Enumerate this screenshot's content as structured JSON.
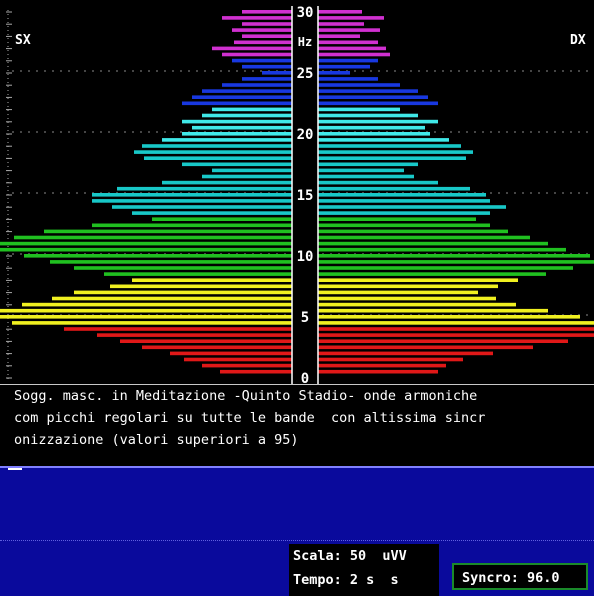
{
  "labels": {
    "left": "SX",
    "right": "DX"
  },
  "chart_data": {
    "type": "bar",
    "orientation": "horizontal-mirrored",
    "axis_label": "Hz",
    "ylim": [
      0,
      30
    ],
    "ticks": [
      "0",
      "5",
      "10",
      "15",
      "20",
      "25",
      "30"
    ],
    "bands": [
      {
        "from": 0,
        "to": 4,
        "color": "#e01818"
      },
      {
        "from": 4,
        "to": 8,
        "color": "#f0f020"
      },
      {
        "from": 8,
        "to": 13,
        "color": "#20c020"
      },
      {
        "from": 13,
        "to": 19,
        "color": "#18c8c8"
      },
      {
        "from": 19,
        "to": 22,
        "color": "#40e8e8"
      },
      {
        "from": 22,
        "to": 26,
        "color": "#1838e0"
      },
      {
        "from": 26,
        "to": 30,
        "color": "#d030d0"
      }
    ],
    "freq": [
      0.5,
      1,
      1.5,
      2,
      2.5,
      3,
      3.5,
      4,
      4.5,
      5,
      5.5,
      6,
      6.5,
      7,
      7.5,
      8,
      8.5,
      9,
      9.5,
      10,
      10.5,
      11,
      11.5,
      12,
      12.5,
      13,
      13.5,
      14,
      14.5,
      15,
      15.5,
      16,
      16.5,
      17,
      17.5,
      18,
      18.5,
      19,
      19.5,
      20,
      20.5,
      21,
      21.5,
      22,
      22.5,
      23,
      23.5,
      24,
      24.5,
      25,
      25.5,
      26,
      26.5,
      27,
      27.5,
      28,
      28.5,
      29,
      29.5,
      30
    ],
    "left": [
      72,
      90,
      108,
      122,
      150,
      172,
      195,
      228,
      280,
      300,
      292,
      270,
      240,
      218,
      182,
      160,
      188,
      218,
      242,
      268,
      298,
      292,
      278,
      248,
      200,
      140,
      160,
      180,
      200,
      200,
      175,
      130,
      90,
      80,
      110,
      148,
      158,
      150,
      130,
      110,
      100,
      110,
      90,
      80,
      110,
      100,
      90,
      70,
      50,
      30,
      50,
      60,
      70,
      80,
      58,
      50,
      60,
      50,
      70,
      50
    ],
    "right": [
      120,
      128,
      145,
      175,
      215,
      250,
      290,
      300,
      288,
      262,
      230,
      198,
      178,
      160,
      180,
      200,
      228,
      255,
      278,
      272,
      248,
      230,
      212,
      190,
      172,
      158,
      172,
      188,
      172,
      168,
      152,
      120,
      96,
      86,
      100,
      148,
      155,
      143,
      131,
      112,
      107,
      120,
      100,
      82,
      120,
      110,
      100,
      82,
      60,
      32,
      52,
      60,
      72,
      68,
      60,
      42,
      62,
      46,
      66,
      44
    ]
  },
  "caption": {
    "line1": "Sogg. masc. in Meditazione -Quinto Stadio- onde armoniche",
    "line2": "com picchi regolari su tutte le bande  con altissima sincr",
    "line3": "onizzazione (valori superiori a 95)"
  },
  "scala": {
    "text": "Scala: 50  uVV"
  },
  "tempo": {
    "text": "Tempo: 2 s  s"
  },
  "syncro": {
    "text": "Syncro: 96.0"
  }
}
